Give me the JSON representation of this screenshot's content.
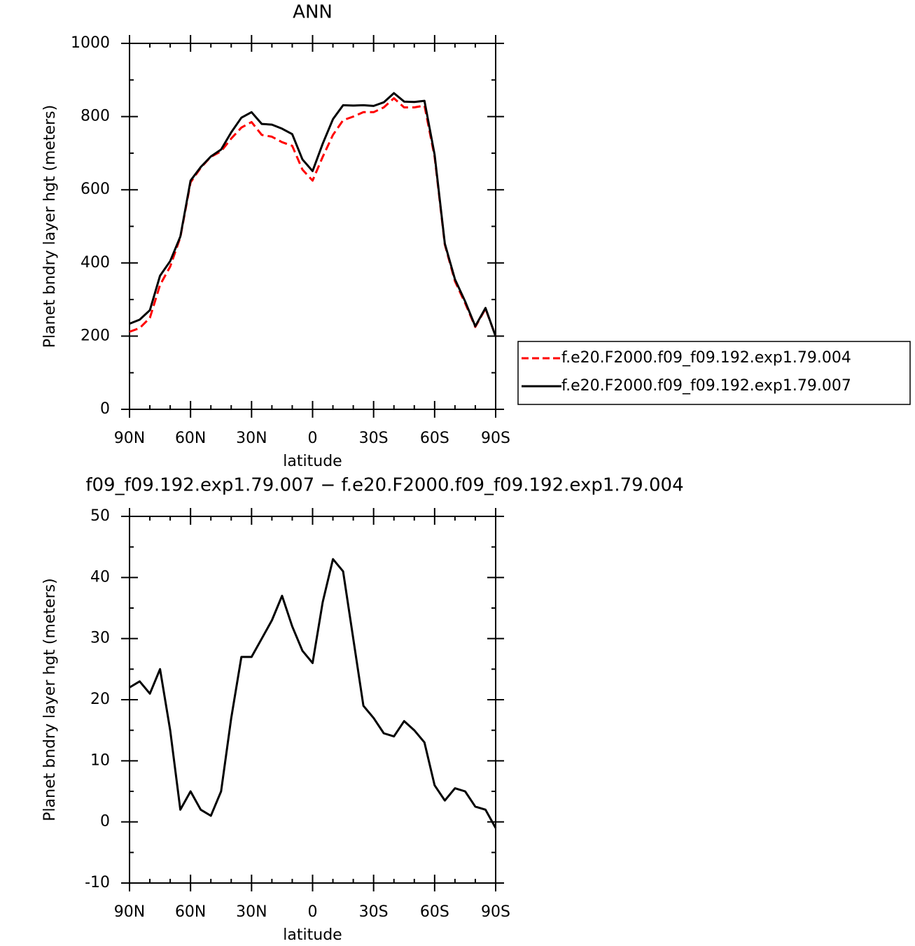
{
  "chart_data": [
    {
      "type": "line",
      "title": "ANN",
      "xlabel": "latitude",
      "ylabel": "Planet bndry layer hgt (meters)",
      "x": [
        90,
        85,
        80,
        75,
        70,
        65,
        60,
        55,
        50,
        45,
        40,
        35,
        30,
        25,
        20,
        15,
        10,
        5,
        0,
        -5,
        -10,
        -15,
        -20,
        -25,
        -30,
        -35,
        -40,
        -45,
        -50,
        -55,
        -60,
        -65,
        -70,
        -75,
        -80,
        -85,
        -90
      ],
      "xlim": [
        90,
        -90
      ],
      "xticks": [
        {
          "value": 90,
          "label": "90N"
        },
        {
          "value": 60,
          "label": "60N"
        },
        {
          "value": 30,
          "label": "30N"
        },
        0,
        {
          "value": -30,
          "label": "30S"
        },
        {
          "value": -60,
          "label": "60S"
        },
        {
          "value": -90,
          "label": "90S"
        }
      ],
      "ylim": [
        0,
        1000
      ],
      "yticks": [
        0,
        200,
        400,
        600,
        800,
        1000
      ],
      "legend": "right",
      "series": [
        {
          "name": "f.e20.F2000.f09_f09.192.exp1.79.004",
          "color": "#ff0000",
          "linestyle": "dashed",
          "values": [
            212,
            222,
            250,
            340,
            390,
            470,
            620,
            660,
            690,
            705,
            740,
            770,
            785,
            750,
            745,
            730,
            720,
            655,
            625,
            690,
            750,
            790,
            800,
            812,
            812,
            825,
            850,
            825,
            825,
            830,
            690,
            450,
            350,
            290,
            225,
            275,
            200
          ]
        },
        {
          "name": "f.e20.F2000.f09_f09.192.exp1.79.007",
          "color": "#000000",
          "linestyle": "solid",
          "values": [
            234,
            245,
            271,
            365,
            405,
            472,
            625,
            662,
            691,
            710,
            757,
            797,
            812,
            780,
            778,
            767,
            752,
            683,
            651,
            726,
            793,
            831,
            830,
            831,
            829,
            839,
            864,
            841,
            840,
            843,
            696,
            453,
            355,
            295,
            227,
            277,
            199
          ]
        }
      ]
    },
    {
      "type": "line",
      "title": "f09_f09.192.exp1.79.007 − f.e20.F2000.f09_f09.192.exp1.79.004",
      "xlabel": "latitude",
      "ylabel": "Planet bndry layer hgt (meters)",
      "x": [
        90,
        85,
        80,
        75,
        70,
        65,
        60,
        55,
        50,
        45,
        40,
        35,
        30,
        25,
        20,
        15,
        10,
        5,
        0,
        -5,
        -10,
        -15,
        -20,
        -25,
        -30,
        -35,
        -40,
        -45,
        -50,
        -55,
        -60,
        -65,
        -70,
        -75,
        -80,
        -85,
        -90
      ],
      "xlim": [
        90,
        -90
      ],
      "xticks": [
        {
          "value": 90,
          "label": "90N"
        },
        {
          "value": 60,
          "label": "60N"
        },
        {
          "value": 30,
          "label": "30N"
        },
        0,
        {
          "value": -30,
          "label": "30S"
        },
        {
          "value": -60,
          "label": "60S"
        },
        {
          "value": -90,
          "label": "90S"
        }
      ],
      "ylim": [
        -10,
        50
      ],
      "yticks": [
        -10,
        0,
        10,
        20,
        30,
        40,
        50
      ],
      "series": [
        {
          "color": "#000000",
          "linestyle": "solid",
          "values": [
            22,
            23,
            21,
            25,
            15,
            2,
            5,
            2,
            1,
            5,
            17,
            27,
            27,
            30,
            33,
            37,
            32,
            28,
            26,
            36,
            43,
            41,
            30,
            19,
            17,
            14.5,
            14,
            16.5,
            15,
            13,
            6,
            3.5,
            5.5,
            5,
            2.5,
            2,
            -1
          ]
        }
      ]
    }
  ]
}
